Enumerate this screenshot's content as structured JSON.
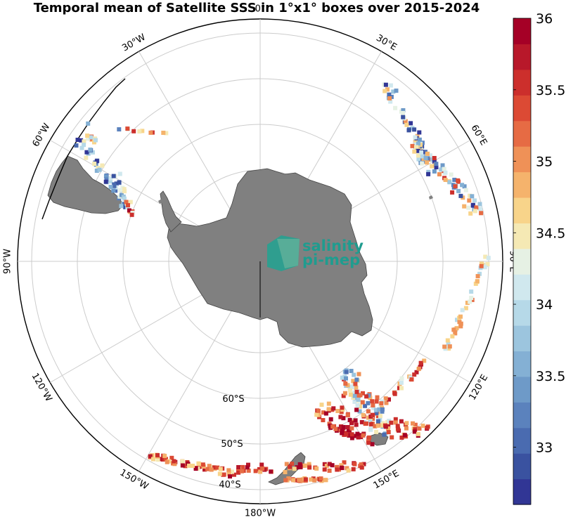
{
  "title": "Temporal mean of Satellite SSS in 1°x1° boxes over 2015-2024",
  "map": {
    "projection": "south-polar-stereographic",
    "meridian_labels": [
      {
        "text": "0°",
        "lon": 0
      },
      {
        "text": "30°E",
        "lon": 30
      },
      {
        "text": "60°E",
        "lon": 60
      },
      {
        "text": "90°E",
        "lon": 90
      },
      {
        "text": "120°E",
        "lon": 120
      },
      {
        "text": "150°E",
        "lon": 150
      },
      {
        "text": "180°W",
        "lon": 180
      },
      {
        "text": "150°W",
        "lon": 210
      },
      {
        "text": "120°W",
        "lon": 240
      },
      {
        "text": "90°W",
        "lon": 270
      },
      {
        "text": "60°W",
        "lon": 300
      },
      {
        "text": "30°W",
        "lon": 330
      }
    ],
    "parallel_labels": [
      {
        "text": "60°S",
        "lat": -60
      },
      {
        "text": "50°S",
        "lat": -50
      },
      {
        "text": "40°S",
        "lat": -40
      }
    ],
    "land_color": "#808080",
    "grid_color": "#cccccc"
  },
  "logo": {
    "line1": "salinity",
    "line2": "pi-mep"
  },
  "colorbar": {
    "min": 32.6,
    "max": 36,
    "tick_labels": [
      "33",
      "33.5",
      "34",
      "34.5",
      "35",
      "35.5",
      "36"
    ],
    "colors": [
      "#313695",
      "#3a52a0",
      "#4a6bb0",
      "#5b82bd",
      "#6e9ac8",
      "#84b0d4",
      "#9cc5de",
      "#b6d9e8",
      "#d0e8ee",
      "#e6f1e4",
      "#f5e9b4",
      "#f8d48a",
      "#f5b36c",
      "#ef9157",
      "#e66b44",
      "#dc4a34",
      "#cc2f2c",
      "#b8182a",
      "#a50026"
    ]
  }
}
